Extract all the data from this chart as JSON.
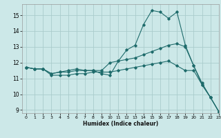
{
  "xlabel": "Humidex (Indice chaleur)",
  "background_color": "#cce8e8",
  "grid_color": "#aacccc",
  "line_color": "#1e6b6b",
  "xlim": [
    -0.5,
    23
  ],
  "ylim": [
    8.8,
    15.7
  ],
  "yticks": [
    9,
    10,
    11,
    12,
    13,
    14,
    15
  ],
  "xticks": [
    0,
    1,
    2,
    3,
    4,
    5,
    6,
    7,
    8,
    9,
    10,
    11,
    12,
    13,
    14,
    15,
    16,
    17,
    18,
    19,
    20,
    21,
    22,
    23
  ],
  "line1_x": [
    0,
    1,
    2,
    3,
    4,
    5,
    6,
    7,
    8,
    9,
    10,
    11,
    12,
    13,
    14,
    15,
    16,
    17,
    18,
    19,
    20,
    21,
    22,
    23
  ],
  "line1_y": [
    11.7,
    11.6,
    11.6,
    11.3,
    11.4,
    11.4,
    11.5,
    11.5,
    11.5,
    11.3,
    11.2,
    12.1,
    12.8,
    13.1,
    14.4,
    15.3,
    15.2,
    14.8,
    15.2,
    13.1,
    11.8,
    10.6,
    9.8,
    8.9
  ],
  "line2_x": [
    0,
    1,
    2,
    3,
    4,
    5,
    6,
    7,
    8,
    9,
    10,
    11,
    12,
    13,
    14,
    15,
    16,
    17,
    18,
    19,
    20,
    21,
    22,
    23
  ],
  "line2_y": [
    11.7,
    11.6,
    11.6,
    11.3,
    11.4,
    11.5,
    11.6,
    11.5,
    11.5,
    11.5,
    12.0,
    12.1,
    12.2,
    12.3,
    12.5,
    12.7,
    12.9,
    13.1,
    13.2,
    13.0,
    11.8,
    10.7,
    9.8,
    8.9
  ],
  "line3_x": [
    0,
    1,
    2,
    3,
    4,
    5,
    6,
    7,
    8,
    9,
    10,
    11,
    12,
    13,
    14,
    15,
    16,
    17,
    18,
    19,
    20,
    21,
    22,
    23
  ],
  "line3_y": [
    11.7,
    11.6,
    11.6,
    11.2,
    11.2,
    11.2,
    11.3,
    11.3,
    11.4,
    11.4,
    11.4,
    11.5,
    11.6,
    11.7,
    11.8,
    11.9,
    12.0,
    12.1,
    11.8,
    11.5,
    11.5,
    10.6,
    9.8,
    8.9
  ]
}
